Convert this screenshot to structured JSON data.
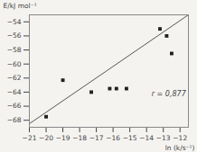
{
  "chart_data": {
    "type": "scatter",
    "xlabel": "ln (k/s⁻¹)",
    "ylabel": "E/kJ mol⁻¹",
    "annotations": [
      {
        "text": "r = 0,877",
        "x": -13.7,
        "y": -64.2,
        "color": "#444444"
      }
    ],
    "series": [
      {
        "type": "line",
        "color": "#555555",
        "x": [
          -21,
          -11.5
        ],
        "values": [
          -68.5,
          -53.0
        ]
      },
      {
        "type": "scatter",
        "color": "#222222",
        "marker": "square",
        "x": [
          -20.0,
          -19.0,
          -17.3,
          -16.2,
          -15.8,
          -15.2,
          -13.2,
          -12.8,
          -12.5
        ],
        "values": [
          -67.5,
          -62.3,
          -64.0,
          -63.5,
          -63.5,
          -63.5,
          -55.0,
          -56.0,
          -58.5
        ]
      }
    ],
    "xlim": [
      -21,
      -11.5
    ],
    "ylim": [
      -69,
      -53
    ],
    "xticks": [
      -21,
      -20,
      -19,
      -18,
      -17,
      -16,
      -15,
      -14,
      -13,
      -12
    ],
    "yticks": [
      -68,
      -66,
      -64,
      -62,
      -60,
      -58,
      -56,
      -54
    ],
    "grid": false
  }
}
